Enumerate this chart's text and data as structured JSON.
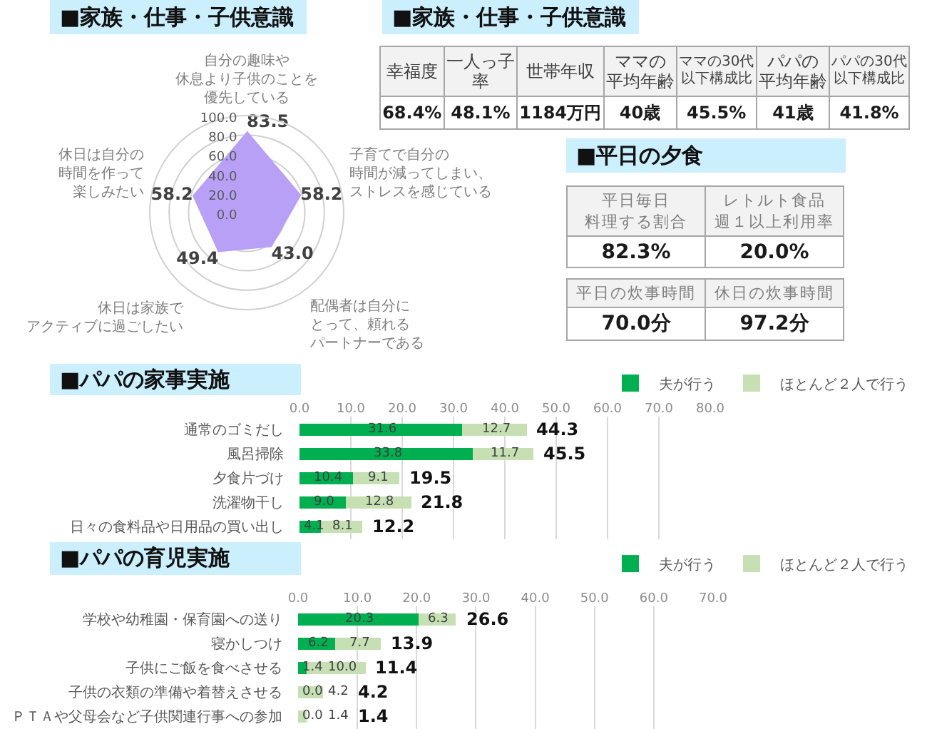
{
  "chart_data": [
    {
      "type": "radar",
      "title": "■家族・仕事・子供意識",
      "categories": [
        "自分の趣味や休息より子供のことを優先している",
        "子育てで自分の時間が減ってしまい、ストレスを感じている",
        "配偶者は自分にとって、頼れるパートナーである",
        "休日は家族でアクティブに過ごしたい",
        "休日は自分の時間を作って楽しみたい"
      ],
      "series": [
        {
          "color": "#b7a0f6",
          "values": [
            83.5,
            58.2,
            43.0,
            49.4,
            58.2
          ],
          "value_labels": [
            "83.5",
            "58.2",
            "43.0",
            "49.4",
            "58.2"
          ]
        }
      ],
      "ylim": [
        0,
        100
      ],
      "yticks": [
        {
          "value": 0,
          "label": "0.0"
        },
        {
          "value": 20,
          "label": "20.0"
        },
        {
          "value": 40,
          "label": "40.0"
        },
        {
          "value": 60,
          "label": "60.0"
        },
        {
          "value": 80,
          "label": "80.0"
        },
        {
          "value": 100,
          "label": "100.0"
        }
      ],
      "grid": true
    },
    {
      "type": "other",
      "title": "■家族・仕事・子供意識",
      "categories": [
        "幸福度",
        "一人っ子率",
        "世帯年収",
        "ママの平均年齢",
        "ママの30代以下構成比",
        "パパの平均年齢",
        "パパの30代以下構成比"
      ],
      "value_labels": [
        "68.4%",
        "48.1%",
        "1184万円",
        "40歳",
        "45.5%",
        "41歳",
        "41.8%"
      ]
    },
    {
      "type": "other",
      "title": "■平日の夕食",
      "categories": [
        "平日毎日料理する割合",
        "レトルト食品週１以上利用率"
      ],
      "value_labels": [
        "82.3%",
        "20.0%"
      ]
    },
    {
      "type": "other",
      "categories": [
        "平日の炊事時間",
        "休日の炊事時間"
      ],
      "value_labels": [
        "70.0分",
        "97.2分"
      ]
    },
    {
      "type": "bar",
      "orientation": "horizontal",
      "stacked": true,
      "title": "■パパの家事実施",
      "categories": [
        "通常のゴミだし",
        "風呂掃除",
        "夕食片づけ",
        "洗濯物干し",
        "日々の食料品や日用品の買い出し"
      ],
      "series": [
        {
          "name": "夫が行う",
          "color": "#00b050",
          "values": [
            31.6,
            33.8,
            10.4,
            9.0,
            4.1
          ],
          "value_labels": [
            "31.6",
            "33.8",
            "10.4",
            "9.0",
            "4.1"
          ]
        },
        {
          "name": "ほとんど２人で行う",
          "color": "#c6e0b4",
          "values": [
            12.7,
            11.7,
            9.1,
            12.8,
            8.1
          ],
          "value_labels": [
            "12.7",
            "11.7",
            "9.1",
            "12.8",
            "8.1"
          ]
        }
      ],
      "totals": [
        "44.3",
        "45.5",
        "19.5",
        "21.8",
        "12.2"
      ],
      "xlim": [
        0,
        80
      ],
      "xticks": [
        {
          "value": 0,
          "label": "0.0"
        },
        {
          "value": 10,
          "label": "10.0"
        },
        {
          "value": 20,
          "label": "20.0"
        },
        {
          "value": 30,
          "label": "30.0"
        },
        {
          "value": 40,
          "label": "40.0"
        },
        {
          "value": 50,
          "label": "50.0"
        },
        {
          "value": 60,
          "label": "60.0"
        },
        {
          "value": 70,
          "label": "70.0"
        },
        {
          "value": 80,
          "label": "80.0"
        }
      ],
      "grid": "x",
      "legend": "top right"
    },
    {
      "type": "bar",
      "orientation": "horizontal",
      "stacked": true,
      "title": "■パパの育児実施",
      "categories": [
        "学校や幼稚園・保育園への送り",
        "寝かしつけ",
        "子供にご飯を食べさせる",
        "子供の衣類の準備や着替えさせる",
        "ＰＴＡや父母会など子供関連行事への参加"
      ],
      "series": [
        {
          "name": "夫が行う",
          "color": "#00b050",
          "values": [
            20.3,
            6.2,
            1.4,
            0.0,
            0.0
          ],
          "value_labels": [
            "20.3",
            "6.2",
            "1.4",
            "0.0",
            "0.0"
          ]
        },
        {
          "name": "ほとんど２人で行う",
          "color": "#c6e0b4",
          "values": [
            6.3,
            7.7,
            10.0,
            4.2,
            1.4
          ],
          "value_labels": [
            "6.3",
            "7.7",
            "10.0",
            "4.2",
            "1.4"
          ]
        }
      ],
      "totals": [
        "26.6",
        "13.9",
        "11.4",
        "4.2",
        "1.4"
      ],
      "xlim": [
        0,
        70
      ],
      "xticks": [
        {
          "value": 0,
          "label": "0.0"
        },
        {
          "value": 10,
          "label": "10.0"
        },
        {
          "value": 20,
          "label": "20.0"
        },
        {
          "value": 30,
          "label": "30.0"
        },
        {
          "value": 40,
          "label": "40.0"
        },
        {
          "value": 50,
          "label": "50.0"
        },
        {
          "value": 60,
          "label": "60.0"
        },
        {
          "value": 70,
          "label": "70.0"
        }
      ],
      "grid": "x",
      "legend": "top right"
    }
  ]
}
